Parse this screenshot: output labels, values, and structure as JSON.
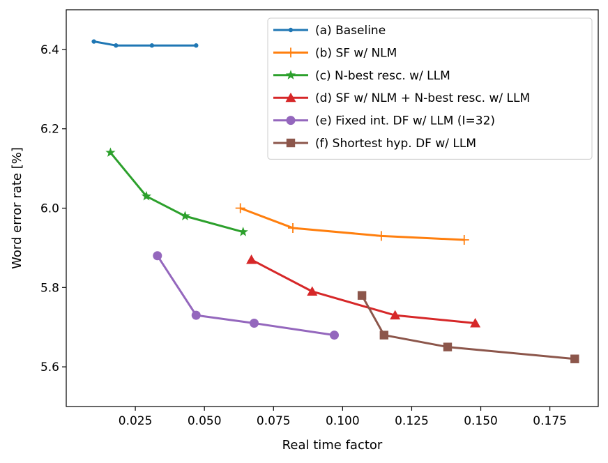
{
  "chart_data": {
    "type": "line",
    "xlabel": "Real time factor",
    "ylabel": "Word error rate [%]",
    "xlim": [
      0.0,
      0.1925
    ],
    "ylim": [
      5.5,
      6.5
    ],
    "xticks": [
      0.025,
      0.05,
      0.075,
      0.1,
      0.125,
      0.15,
      0.175
    ],
    "xtick_labels": [
      "0.025",
      "0.050",
      "0.075",
      "0.100",
      "0.125",
      "0.150",
      "0.175"
    ],
    "yticks": [
      5.6,
      5.8,
      6.0,
      6.2,
      6.4
    ],
    "ytick_labels": [
      "5.6",
      "5.8",
      "6.0",
      "6.2",
      "6.4"
    ],
    "grid": false,
    "legend_position": "top-right",
    "series": [
      {
        "name": "(a) Baseline",
        "color": "#1f77b4",
        "marker": "point",
        "x": [
          0.01,
          0.018,
          0.031,
          0.047
        ],
        "y": [
          6.42,
          6.41,
          6.41,
          6.41
        ]
      },
      {
        "name": "(b) SF w/ NLM",
        "color": "#ff7f0e",
        "marker": "plus",
        "x": [
          0.063,
          0.082,
          0.114,
          0.144
        ],
        "y": [
          6.0,
          5.95,
          5.93,
          5.92
        ]
      },
      {
        "name": "(c) N-best resc. w/ LLM",
        "color": "#2ca02c",
        "marker": "star",
        "x": [
          0.016,
          0.029,
          0.043,
          0.064
        ],
        "y": [
          6.14,
          6.03,
          5.98,
          5.94
        ]
      },
      {
        "name": "(d) SF w/ NLM + N-best resc. w/ LLM",
        "color": "#d62728",
        "marker": "triangle",
        "x": [
          0.067,
          0.089,
          0.119,
          0.148
        ],
        "y": [
          5.87,
          5.79,
          5.73,
          5.71
        ]
      },
      {
        "name": "(e) Fixed int. DF w/ LLM (I=32)",
        "color": "#9467bd",
        "marker": "circle",
        "x": [
          0.033,
          0.047,
          0.068,
          0.097
        ],
        "y": [
          5.88,
          5.73,
          5.71,
          5.68
        ]
      },
      {
        "name": "(f) Shortest hyp. DF w/ LLM",
        "color": "#8c564b",
        "marker": "square",
        "x": [
          0.107,
          0.115,
          0.138,
          0.184
        ],
        "y": [
          5.78,
          5.68,
          5.65,
          5.62
        ]
      }
    ]
  }
}
